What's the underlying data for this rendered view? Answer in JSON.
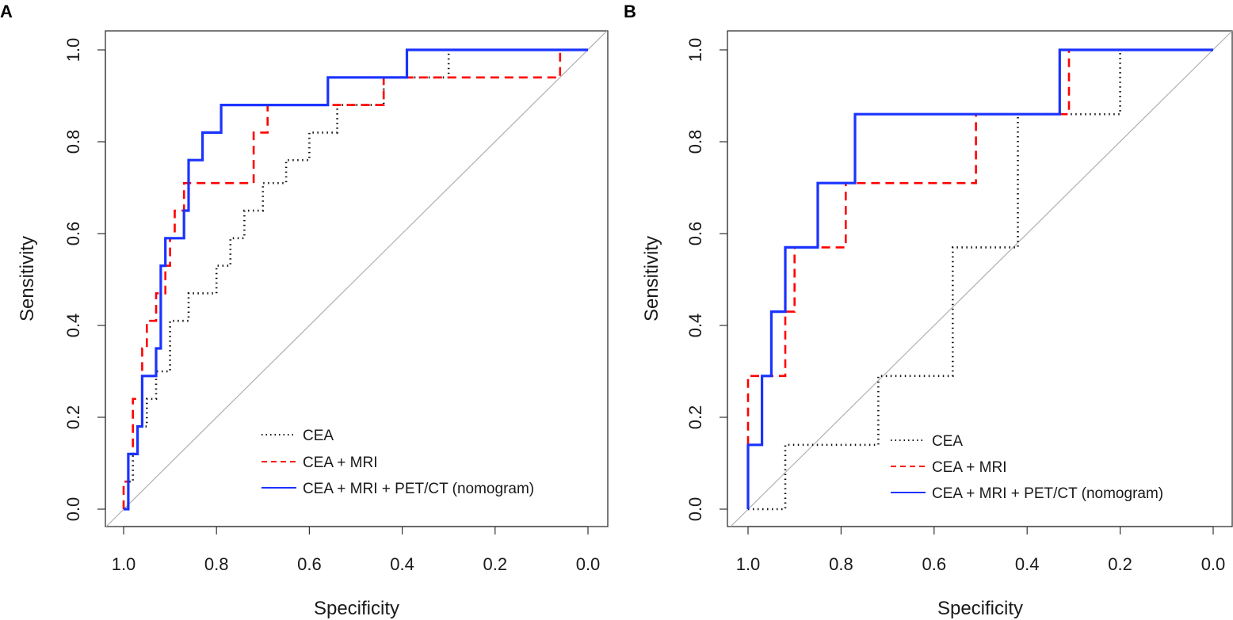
{
  "colors": {
    "cea": "#111111",
    "cea_mri": "#ff0000",
    "nomogram": "#1a33ff",
    "diagonal": "#b0b0b0",
    "frame": "#333333"
  },
  "chart_data": [
    {
      "type": "line",
      "panel_label": "A",
      "xlabel": "Specificity",
      "ylabel": "Sensitivity",
      "xlim": [
        1.0,
        0.0
      ],
      "ylim": [
        0.0,
        1.0
      ],
      "x_ticks": [
        "1.0",
        "0.8",
        "0.6",
        "0.4",
        "0.2",
        "0.0"
      ],
      "y_ticks": [
        "0.0",
        "0.2",
        "0.4",
        "0.6",
        "0.8",
        "1.0"
      ],
      "legend": [
        "CEA",
        "CEA + MRI",
        "CEA + MRI + PET/CT (nomogram)"
      ],
      "series": [
        {
          "name": "CEA",
          "style": "dotted",
          "points": [
            [
              1.0,
              0.0
            ],
            [
              0.99,
              0.0
            ],
            [
              0.99,
              0.06
            ],
            [
              0.98,
              0.06
            ],
            [
              0.98,
              0.12
            ],
            [
              0.97,
              0.12
            ],
            [
              0.97,
              0.18
            ],
            [
              0.95,
              0.18
            ],
            [
              0.95,
              0.24
            ],
            [
              0.93,
              0.24
            ],
            [
              0.93,
              0.3
            ],
            [
              0.9,
              0.3
            ],
            [
              0.9,
              0.41
            ],
            [
              0.86,
              0.41
            ],
            [
              0.86,
              0.47
            ],
            [
              0.8,
              0.47
            ],
            [
              0.8,
              0.53
            ],
            [
              0.77,
              0.53
            ],
            [
              0.77,
              0.59
            ],
            [
              0.74,
              0.59
            ],
            [
              0.74,
              0.65
            ],
            [
              0.7,
              0.65
            ],
            [
              0.7,
              0.71
            ],
            [
              0.65,
              0.71
            ],
            [
              0.65,
              0.76
            ],
            [
              0.6,
              0.76
            ],
            [
              0.6,
              0.82
            ],
            [
              0.54,
              0.82
            ],
            [
              0.54,
              0.88
            ],
            [
              0.44,
              0.88
            ],
            [
              0.44,
              0.94
            ],
            [
              0.3,
              0.94
            ],
            [
              0.3,
              1.0
            ],
            [
              0.0,
              1.0
            ]
          ]
        },
        {
          "name": "CEA + MRI",
          "style": "dashed",
          "points": [
            [
              1.0,
              0.0
            ],
            [
              1.0,
              0.06
            ],
            [
              0.99,
              0.06
            ],
            [
              0.99,
              0.12
            ],
            [
              0.98,
              0.12
            ],
            [
              0.98,
              0.24
            ],
            [
              0.96,
              0.24
            ],
            [
              0.96,
              0.35
            ],
            [
              0.95,
              0.35
            ],
            [
              0.95,
              0.41
            ],
            [
              0.93,
              0.41
            ],
            [
              0.93,
              0.47
            ],
            [
              0.91,
              0.47
            ],
            [
              0.91,
              0.53
            ],
            [
              0.9,
              0.53
            ],
            [
              0.9,
              0.59
            ],
            [
              0.89,
              0.59
            ],
            [
              0.89,
              0.65
            ],
            [
              0.87,
              0.65
            ],
            [
              0.87,
              0.71
            ],
            [
              0.72,
              0.71
            ],
            [
              0.72,
              0.82
            ],
            [
              0.69,
              0.82
            ],
            [
              0.69,
              0.88
            ],
            [
              0.44,
              0.88
            ],
            [
              0.44,
              0.94
            ],
            [
              0.06,
              0.94
            ],
            [
              0.06,
              1.0
            ],
            [
              0.0,
              1.0
            ]
          ]
        },
        {
          "name": "CEA + MRI + PET/CT (nomogram)",
          "style": "solid",
          "points": [
            [
              1.0,
              0.0
            ],
            [
              0.99,
              0.0
            ],
            [
              0.99,
              0.12
            ],
            [
              0.97,
              0.12
            ],
            [
              0.97,
              0.18
            ],
            [
              0.96,
              0.18
            ],
            [
              0.96,
              0.29
            ],
            [
              0.93,
              0.29
            ],
            [
              0.93,
              0.35
            ],
            [
              0.92,
              0.35
            ],
            [
              0.92,
              0.53
            ],
            [
              0.91,
              0.53
            ],
            [
              0.91,
              0.59
            ],
            [
              0.87,
              0.59
            ],
            [
              0.87,
              0.65
            ],
            [
              0.86,
              0.65
            ],
            [
              0.86,
              0.76
            ],
            [
              0.83,
              0.76
            ],
            [
              0.83,
              0.82
            ],
            [
              0.79,
              0.82
            ],
            [
              0.79,
              0.88
            ],
            [
              0.56,
              0.88
            ],
            [
              0.56,
              0.94
            ],
            [
              0.39,
              0.94
            ],
            [
              0.39,
              1.0
            ],
            [
              0.0,
              1.0
            ]
          ]
        }
      ]
    },
    {
      "type": "line",
      "panel_label": "B",
      "xlabel": "Specificity",
      "ylabel": "Sensitivity",
      "xlim": [
        1.0,
        0.0
      ],
      "ylim": [
        0.0,
        1.0
      ],
      "x_ticks": [
        "1.0",
        "0.8",
        "0.6",
        "0.4",
        "0.2",
        "0.0"
      ],
      "y_ticks": [
        "0.0",
        "0.2",
        "0.4",
        "0.6",
        "0.8",
        "1.0"
      ],
      "legend": [
        "CEA",
        "CEA + MRI",
        "CEA + MRI + PET/CT (nomogram)"
      ],
      "series": [
        {
          "name": "CEA",
          "style": "dotted",
          "points": [
            [
              1.0,
              0.0
            ],
            [
              0.92,
              0.0
            ],
            [
              0.92,
              0.14
            ],
            [
              0.72,
              0.14
            ],
            [
              0.72,
              0.29
            ],
            [
              0.56,
              0.29
            ],
            [
              0.56,
              0.57
            ],
            [
              0.42,
              0.57
            ],
            [
              0.42,
              0.86
            ],
            [
              0.2,
              0.86
            ],
            [
              0.2,
              1.0
            ],
            [
              0.0,
              1.0
            ]
          ]
        },
        {
          "name": "CEA + MRI",
          "style": "dashed",
          "points": [
            [
              1.0,
              0.14
            ],
            [
              1.0,
              0.29
            ],
            [
              0.92,
              0.29
            ],
            [
              0.92,
              0.43
            ],
            [
              0.9,
              0.43
            ],
            [
              0.9,
              0.57
            ],
            [
              0.79,
              0.57
            ],
            [
              0.79,
              0.71
            ],
            [
              0.51,
              0.71
            ],
            [
              0.51,
              0.86
            ],
            [
              0.31,
              0.86
            ],
            [
              0.31,
              1.0
            ],
            [
              0.0,
              1.0
            ]
          ]
        },
        {
          "name": "CEA + MRI + PET/CT (nomogram)",
          "style": "solid",
          "points": [
            [
              1.0,
              0.0
            ],
            [
              1.0,
              0.14
            ],
            [
              0.97,
              0.14
            ],
            [
              0.97,
              0.29
            ],
            [
              0.95,
              0.29
            ],
            [
              0.95,
              0.43
            ],
            [
              0.92,
              0.43
            ],
            [
              0.92,
              0.57
            ],
            [
              0.85,
              0.57
            ],
            [
              0.85,
              0.71
            ],
            [
              0.77,
              0.71
            ],
            [
              0.77,
              0.86
            ],
            [
              0.33,
              0.86
            ],
            [
              0.33,
              1.0
            ],
            [
              0.0,
              1.0
            ]
          ]
        }
      ]
    }
  ]
}
